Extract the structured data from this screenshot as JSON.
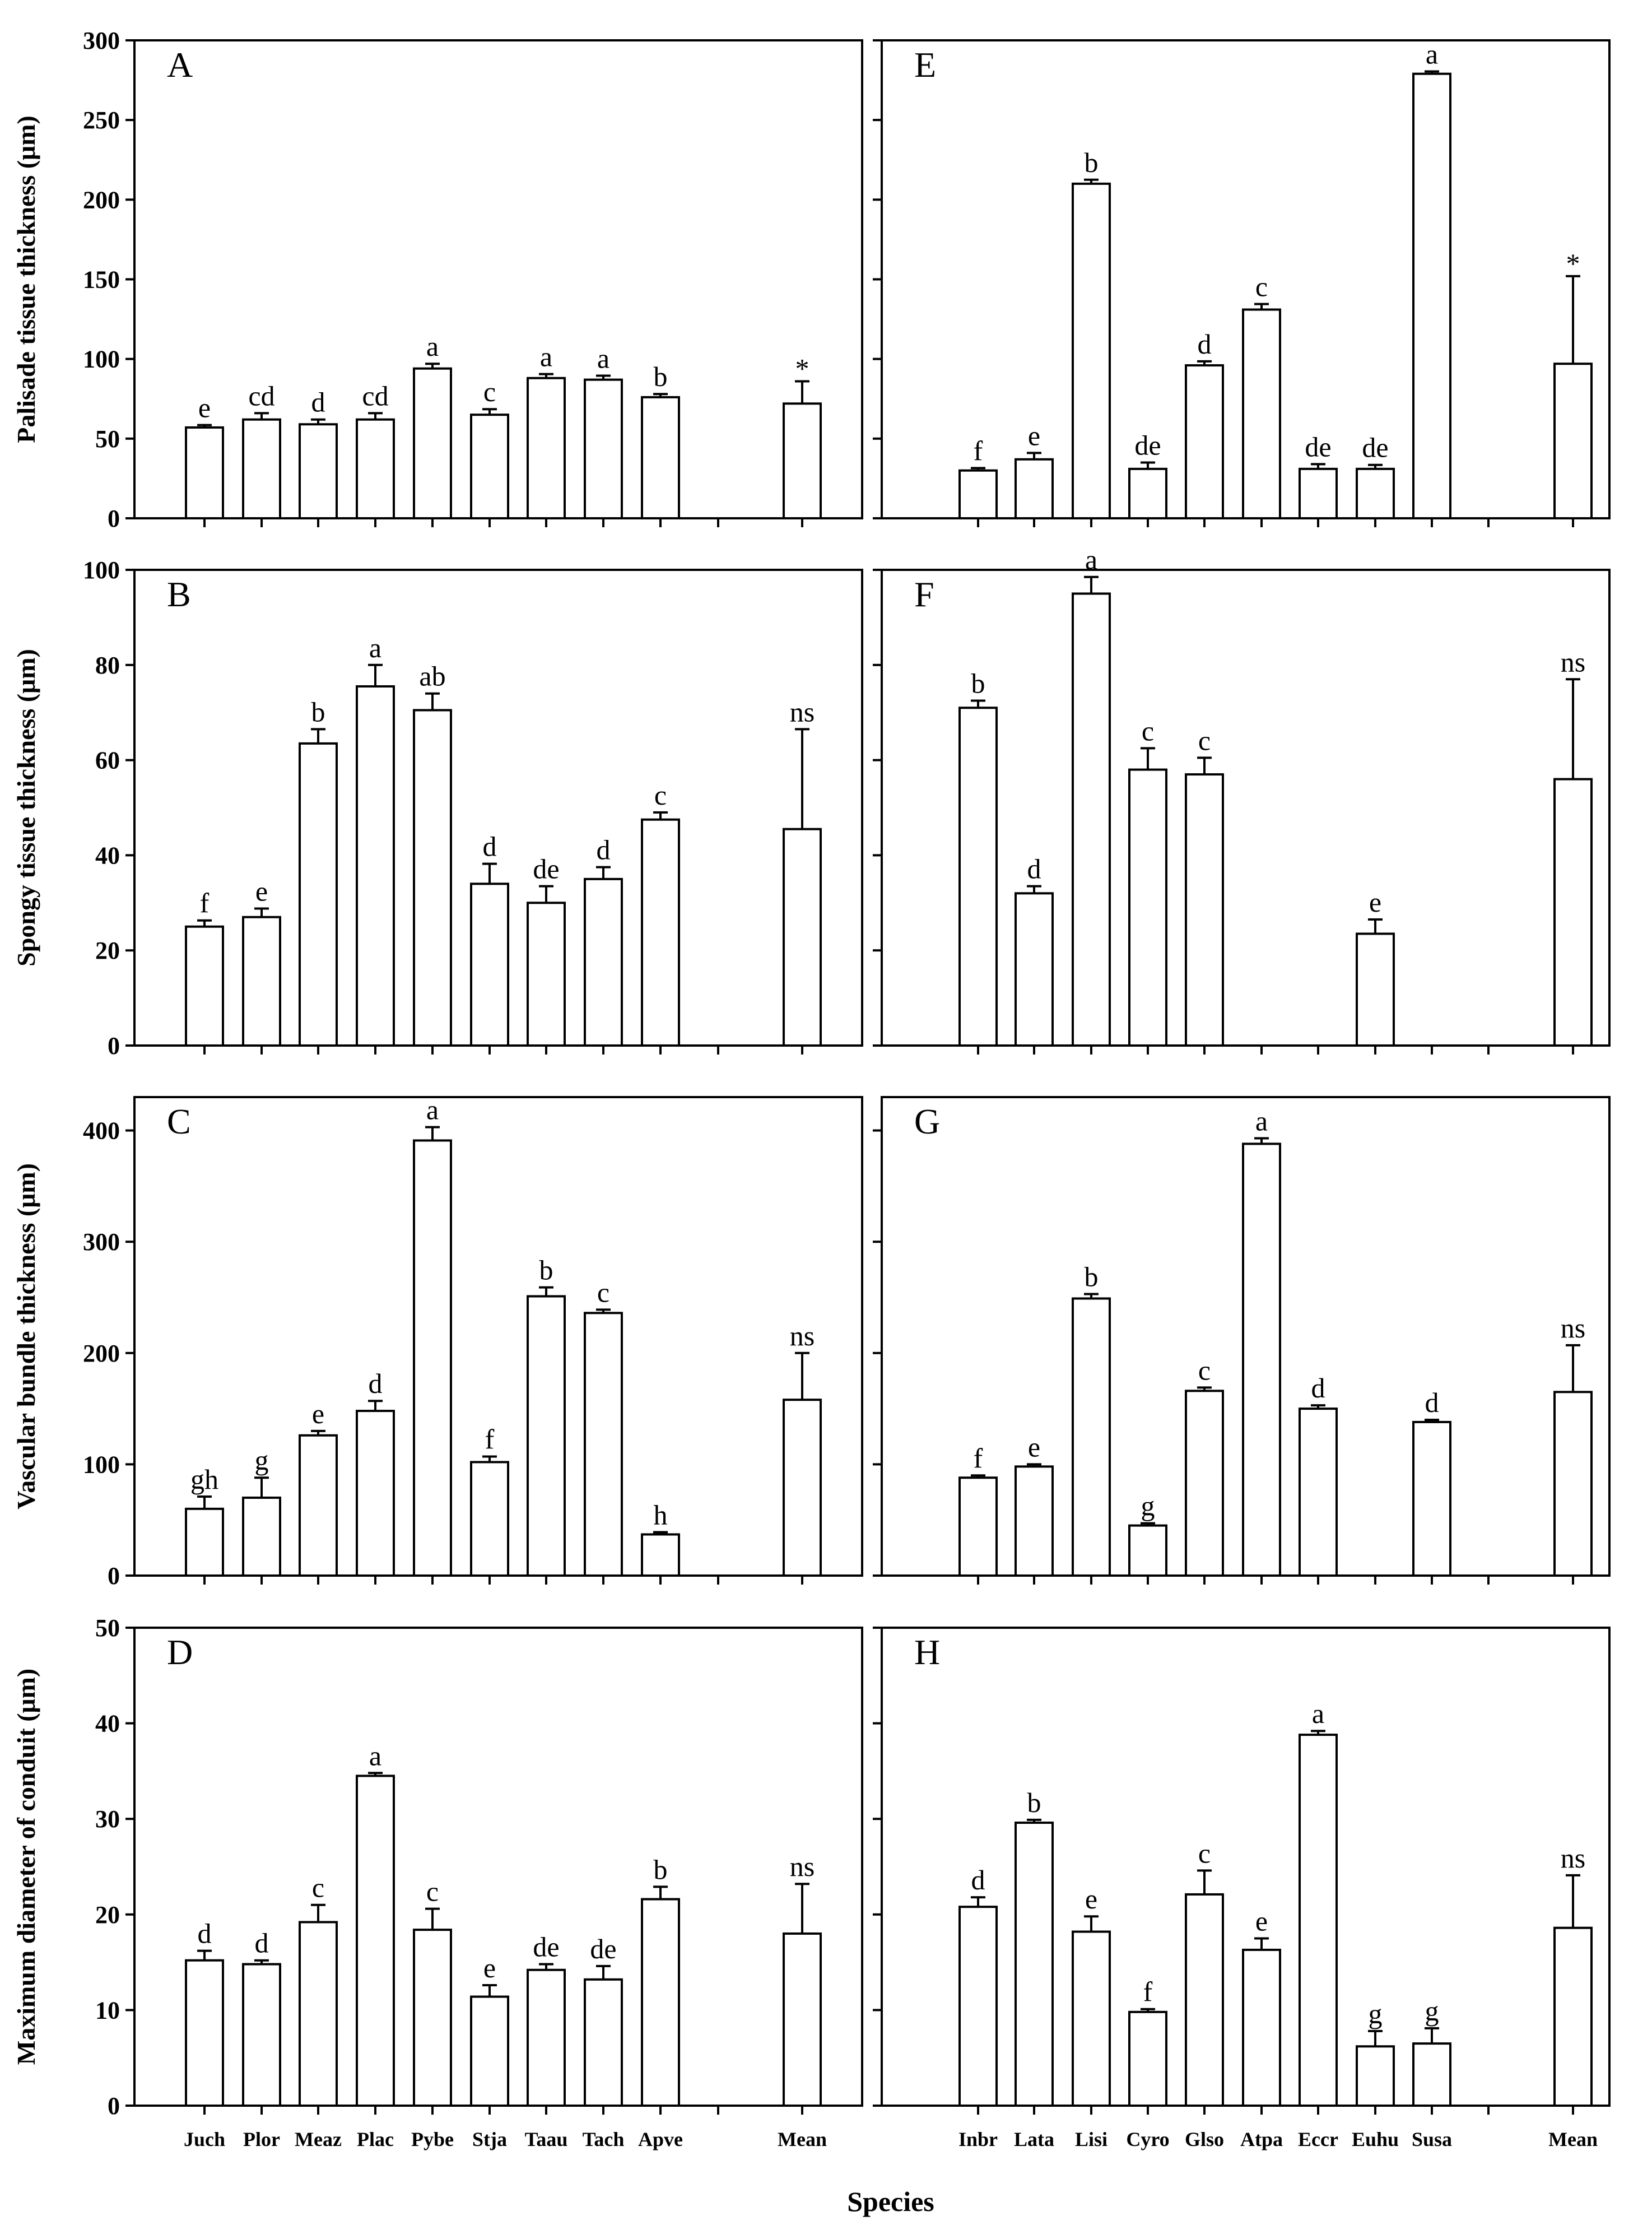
{
  "figure": {
    "xlabel": "Species"
  },
  "chart_data": [
    {
      "panel": "A",
      "type": "bar",
      "ylabel": "Palisade tissue thickness (μm)",
      "ylim": [
        0,
        300
      ],
      "yticks": [
        0,
        50,
        100,
        150,
        200,
        250,
        300
      ],
      "show_tick_labels": true,
      "categories": [
        "Juch",
        "Plor",
        "Meaz",
        "Plac",
        "Pybe",
        "Stja",
        "Taau",
        "Tach",
        "Apve",
        "",
        "Mean"
      ],
      "values": [
        57,
        62,
        59,
        62,
        94,
        65,
        88,
        87,
        76,
        null,
        72
      ],
      "errors": [
        1.5,
        4,
        3,
        4,
        3,
        3.5,
        2.5,
        2.5,
        2,
        null,
        14
      ],
      "labels": [
        "e",
        "cd",
        "d",
        "cd",
        "a",
        "c",
        "a",
        "a",
        "b",
        "",
        "*"
      ]
    },
    {
      "panel": "B",
      "type": "bar",
      "ylabel": "Spongy tissue thickness (μm)",
      "ylim": [
        0,
        100
      ],
      "yticks": [
        0,
        20,
        40,
        60,
        80,
        100
      ],
      "show_tick_labels": true,
      "categories": [
        "Juch",
        "Plor",
        "Meaz",
        "Plac",
        "Pybe",
        "Stja",
        "Taau",
        "Tach",
        "Apve",
        "",
        "Mean"
      ],
      "values": [
        25,
        27,
        63.5,
        75.5,
        70.5,
        34,
        30,
        35,
        47.5,
        null,
        45.5
      ],
      "errors": [
        1.3,
        1.8,
        3,
        4.5,
        3.5,
        4.2,
        3.5,
        2.5,
        1.5,
        null,
        21
      ],
      "labels": [
        "f",
        "e",
        "b",
        "a",
        "ab",
        "d",
        "de",
        "d",
        "c",
        "",
        "ns"
      ]
    },
    {
      "panel": "C",
      "type": "bar",
      "ylabel": "Vascular bundle thickness (μm)",
      "ylim": [
        0,
        430
      ],
      "yticks": [
        0,
        100,
        200,
        300,
        400
      ],
      "show_tick_labels": true,
      "categories": [
        "Juch",
        "Plor",
        "Meaz",
        "Plac",
        "Pybe",
        "Stja",
        "Taau",
        "Tach",
        "Apve",
        "",
        "Mean"
      ],
      "values": [
        60,
        70,
        126,
        148,
        391,
        102,
        251,
        236,
        37,
        null,
        158
      ],
      "errors": [
        11,
        18,
        4,
        9,
        12,
        5,
        8,
        3,
        2,
        null,
        42
      ],
      "labels": [
        "gh",
        "g",
        "e",
        "d",
        "a",
        "f",
        "b",
        "c",
        "h",
        "",
        "ns"
      ]
    },
    {
      "panel": "D",
      "type": "bar",
      "ylabel": "Maximum diameter of conduit (μm)",
      "ylim": [
        0,
        50
      ],
      "yticks": [
        0,
        10,
        20,
        30,
        40,
        50
      ],
      "show_tick_labels": true,
      "categories": [
        "Juch",
        "Plor",
        "Meaz",
        "Plac",
        "Pybe",
        "Stja",
        "Taau",
        "Tach",
        "Apve",
        "",
        "Mean"
      ],
      "values": [
        15.2,
        14.8,
        19.2,
        34.5,
        18.4,
        11.4,
        14.2,
        13.2,
        21.6,
        null,
        18
      ],
      "errors": [
        1,
        0.4,
        1.8,
        0.3,
        2.2,
        1.2,
        0.6,
        1.4,
        1.3,
        null,
        5.2
      ],
      "labels": [
        "d",
        "d",
        "c",
        "a",
        "c",
        "e",
        "de",
        "de",
        "b",
        "",
        "ns"
      ]
    },
    {
      "panel": "E",
      "type": "bar",
      "ylim": [
        0,
        300
      ],
      "yticks": [
        0,
        50,
        100,
        150,
        200,
        250,
        300
      ],
      "show_tick_labels": false,
      "categories": [
        "Inbr",
        "Lata",
        "Lisi",
        "Cyro",
        "Glso",
        "Atpa",
        "Eccr",
        "Euhu",
        "Susa",
        "",
        "Mean"
      ],
      "values": [
        30,
        37,
        210,
        31,
        96,
        131,
        31,
        31,
        279,
        null,
        97
      ],
      "errors": [
        1.5,
        4,
        2.5,
        4,
        2.5,
        3.5,
        3,
        2.5,
        1.5,
        null,
        55
      ],
      "labels": [
        "f",
        "e",
        "b",
        "de",
        "d",
        "c",
        "de",
        "de",
        "a",
        "",
        "*"
      ]
    },
    {
      "panel": "F",
      "type": "bar",
      "ylim": [
        0,
        100
      ],
      "yticks": [
        0,
        20,
        40,
        60,
        80,
        100
      ],
      "show_tick_labels": false,
      "categories": [
        "Inbr",
        "Lata",
        "Lisi",
        "Cyro",
        "Glso",
        "Atpa",
        "Eccr",
        "Euhu",
        "Susa",
        "",
        "Mean"
      ],
      "values": [
        71,
        32,
        95,
        58,
        57,
        null,
        null,
        23.5,
        null,
        null,
        56
      ],
      "errors": [
        1.5,
        1.5,
        3.5,
        4.5,
        3.5,
        null,
        null,
        3,
        null,
        null,
        21
      ],
      "labels": [
        "b",
        "d",
        "a",
        "c",
        "c",
        "",
        "",
        "e",
        "",
        "",
        "ns"
      ]
    },
    {
      "panel": "G",
      "type": "bar",
      "ylim": [
        0,
        430
      ],
      "yticks": [
        0,
        100,
        200,
        300,
        400
      ],
      "show_tick_labels": false,
      "categories": [
        "Inbr",
        "Lata",
        "Lisi",
        "Cyro",
        "Glso",
        "Atpa",
        "Eccr",
        "Euhu",
        "Susa",
        "",
        "Mean"
      ],
      "values": [
        88,
        98,
        249,
        45,
        166,
        388,
        150,
        null,
        138,
        null,
        165
      ],
      "errors": [
        2,
        2,
        4,
        2,
        3,
        5,
        3,
        null,
        2,
        null,
        42
      ],
      "labels": [
        "f",
        "e",
        "b",
        "g",
        "c",
        "a",
        "d",
        "",
        "d",
        "",
        "ns"
      ]
    },
    {
      "panel": "H",
      "type": "bar",
      "ylim": [
        0,
        50
      ],
      "yticks": [
        0,
        10,
        20,
        30,
        40,
        50
      ],
      "show_tick_labels": false,
      "categories": [
        "Inbr",
        "Lata",
        "Lisi",
        "Cyro",
        "Glso",
        "Atpa",
        "Eccr",
        "Euhu",
        "Susa",
        "",
        "Mean"
      ],
      "values": [
        20.8,
        29.6,
        18.2,
        9.8,
        22.1,
        16.3,
        38.8,
        6.2,
        6.5,
        null,
        18.6
      ],
      "errors": [
        1,
        0.3,
        1.6,
        0.3,
        2.5,
        1.2,
        0.4,
        1.6,
        1.6,
        null,
        5.5
      ],
      "labels": [
        "d",
        "b",
        "e",
        "f",
        "c",
        "e",
        "a",
        "g",
        "g",
        "",
        "ns"
      ]
    }
  ]
}
